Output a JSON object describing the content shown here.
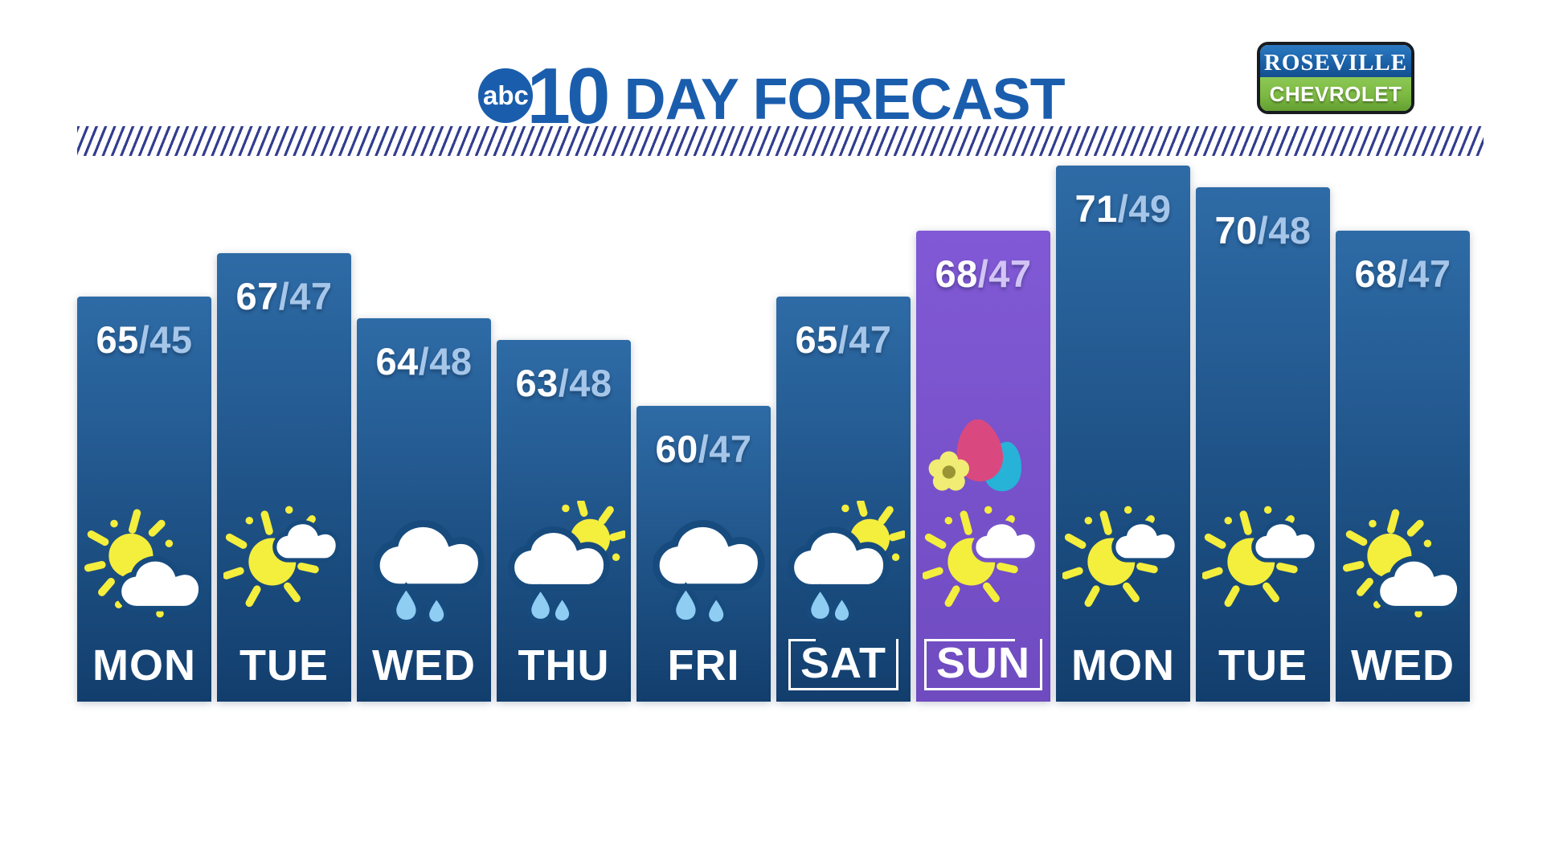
{
  "header": {
    "abc_label": "abc",
    "ten_label": "10",
    "title": "DAY FORECAST"
  },
  "sponsor": {
    "line1": "ROSEVILLE",
    "line2": "CHEVROLET"
  },
  "separator": "/",
  "colors": {
    "title_blue": "#1a5dad",
    "divider_navy": "#333d8f",
    "bar_blue_top": "#2e6ba6",
    "bar_blue_bottom": "#123e6d",
    "bar_purple_top": "#8159d6",
    "bar_purple_bottom": "#6f4bc0",
    "high_text": "#ffffff",
    "low_text_blue": "#a6c6e9",
    "low_text_purple": "#d2c4f4",
    "sun_yellow": "#f4ee3d",
    "rain_blue": "#8fcdf3",
    "egg_pink": "#d9497f",
    "egg_teal": "#27b2d8",
    "flower_yellow": "#f1ec73",
    "flower_center": "#9a9434",
    "outline_blue": "#174b7e",
    "outline_purple": "#7552c8",
    "sponsor_blue": "#1b62a8",
    "sponsor_green": "#7cb942",
    "day_text": "#ffffff"
  },
  "days": [
    {
      "label": "MON",
      "high": 65,
      "low": 45,
      "icon": "partly-cloudy",
      "variant": "blue",
      "boxed": false
    },
    {
      "label": "TUE",
      "high": 67,
      "low": 47,
      "icon": "mostly-sunny",
      "variant": "blue",
      "boxed": false
    },
    {
      "label": "WED",
      "high": 64,
      "low": 48,
      "icon": "rain",
      "variant": "blue",
      "boxed": false
    },
    {
      "label": "THU",
      "high": 63,
      "low": 48,
      "icon": "sun-showers",
      "variant": "blue",
      "boxed": false
    },
    {
      "label": "FRI",
      "high": 60,
      "low": 47,
      "icon": "rain",
      "variant": "blue",
      "boxed": false
    },
    {
      "label": "SAT",
      "high": 65,
      "low": 47,
      "icon": "sun-showers",
      "variant": "blue",
      "boxed": true
    },
    {
      "label": "SUN",
      "high": 68,
      "low": 47,
      "icon": "easter-mostly-sunny",
      "variant": "purple",
      "boxed": true
    },
    {
      "label": "MON",
      "high": 71,
      "low": 49,
      "icon": "mostly-sunny",
      "variant": "blue",
      "boxed": false
    },
    {
      "label": "TUE",
      "high": 70,
      "low": 48,
      "icon": "mostly-sunny",
      "variant": "blue",
      "boxed": false
    },
    {
      "label": "WED",
      "high": 68,
      "low": 47,
      "icon": "partly-cloudy",
      "variant": "blue",
      "boxed": false
    }
  ],
  "chart_data": {
    "type": "bar",
    "title": "abc10 DAY FORECAST",
    "categories": [
      "MON",
      "TUE",
      "WED",
      "THU",
      "FRI",
      "SAT",
      "SUN",
      "MON",
      "TUE",
      "WED"
    ],
    "series": [
      {
        "name": "High",
        "values": [
          65,
          67,
          64,
          63,
          60,
          65,
          68,
          71,
          70,
          68
        ]
      },
      {
        "name": "Low",
        "values": [
          45,
          47,
          48,
          48,
          47,
          47,
          47,
          49,
          48,
          47
        ]
      }
    ],
    "conditions": [
      "partly-cloudy",
      "mostly-sunny",
      "rain",
      "sun-showers",
      "rain",
      "sun-showers",
      "mostly-sunny-easter",
      "mostly-sunny",
      "mostly-sunny",
      "partly-cloudy"
    ],
    "bar_height_encodes": "High",
    "highlighted_category": "SUN",
    "legend": "none",
    "grid": false
  }
}
